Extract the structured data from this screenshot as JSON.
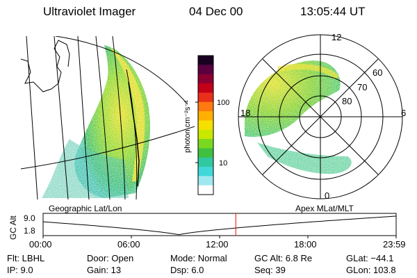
{
  "header": {
    "title": "Ultraviolet Imager",
    "date": "04 Dec 00",
    "time": "13:05:44 UT"
  },
  "colorbar": {
    "unit_label": "photon cm⁻²s⁻¹",
    "ticks": [
      "100",
      "10"
    ],
    "colors": [
      "#1a0022",
      "#5a0040",
      "#8a0030",
      "#c40018",
      "#e8301a",
      "#ff7a10",
      "#ffb000",
      "#f5e000",
      "#c8e800",
      "#7ad820",
      "#40c040",
      "#30c8a0",
      "#40d8d8",
      "#a0e8f0",
      "#ffffff"
    ]
  },
  "geo_panel": {
    "label": "Geographic Lat/Lon"
  },
  "polar_panel": {
    "label": "Apex MLat/MLT",
    "lat_labels": [
      "80",
      "70",
      "60"
    ],
    "mlt_labels": [
      "12",
      "18",
      "6",
      "0"
    ]
  },
  "altitude_strip": {
    "axis_label": "GC Alt",
    "y_ticks": [
      "9.0",
      "1.8"
    ],
    "x_ticks": [
      "00:00",
      "06:00",
      "12:00",
      "18:00",
      "23:59"
    ],
    "current_marker_hours": 13.1
  },
  "footer": {
    "filter": "Flt: LBHL",
    "ip": "IP: 9.0",
    "door": "Door: Open",
    "gain": "Gain: 13",
    "mode": "Mode: Normal",
    "dsp": "Dsp: 6.0",
    "gc_alt": "GC Alt: 6.8 Re",
    "seq": "Seq: 39",
    "glat": "GLat: −44.1",
    "glon": "GLon: 103.8"
  },
  "style": {
    "marker_color": "#ff0000",
    "aurora_green": "#60c830",
    "aurora_yellow": "#e8e020",
    "aurora_cyan": "#30c8b0"
  }
}
